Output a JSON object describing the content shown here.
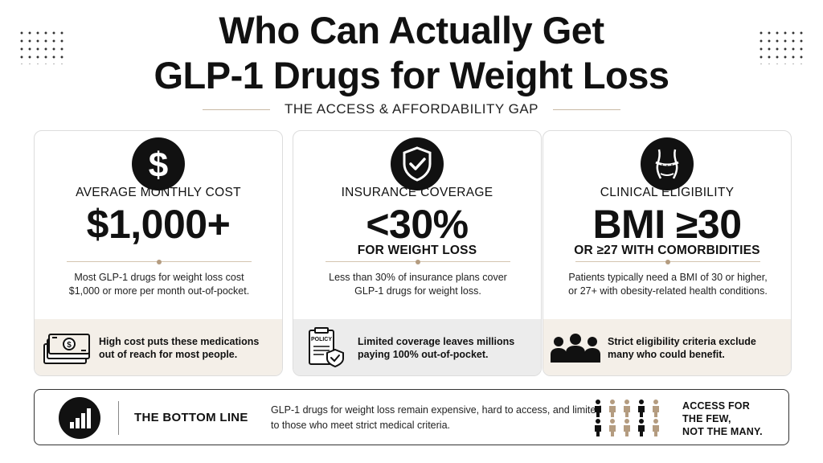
{
  "title": {
    "line1": "Who Can Actually Get",
    "line2": "GLP-1 Drugs for Weight Loss"
  },
  "subtitle": "THE ACCESS & AFFORDABILITY GAP",
  "cards": [
    {
      "icon": "dollar-icon",
      "label": "AVERAGE MONTHLY COST",
      "big": "$1,000+",
      "sub": "",
      "desc": "Most GLP-1 drugs for weight loss cost $1,000 or more per month out-of-pocket.",
      "foot_icon": "cash-stack-icon",
      "foot_text": "High cost puts these medications out of reach for most people."
    },
    {
      "icon": "shield-check-icon",
      "label": "INSURANCE COVERAGE",
      "big": "<30%",
      "sub": "FOR WEIGHT LOSS",
      "desc": "Less than 30% of insurance plans cover GLP-1 drugs for weight loss.",
      "foot_icon": "policy-document-icon",
      "policy_label": "POLICY",
      "foot_text": "Limited coverage leaves millions paying 100% out-of-pocket."
    },
    {
      "icon": "waist-measure-icon",
      "label": "CLINICAL ELIGIBILITY",
      "big": "BMI ≥30",
      "sub": "OR ≥27 WITH COMORBIDITIES",
      "desc": "Patients typically need a BMI of 30 or higher, or 27+ with obesity-related health conditions.",
      "foot_icon": "group-people-icon",
      "foot_text": "Strict eligibility criteria exclude many who could benefit."
    }
  ],
  "bottom": {
    "icon": "bar-chart-icon",
    "title": "THE BOTTOM LINE",
    "text": "GLP-1 drugs for weight loss remain expensive, hard to access, and limited to those who meet strict medical criteria.",
    "tag_line1": "ACCESS FOR",
    "tag_line2": "THE FEW,",
    "tag_line3": "NOT THE MANY."
  },
  "colors": {
    "accent_beige": "#f4efe8",
    "accent_gray": "#ececec",
    "tan": "#b49c80",
    "dark": "#111111"
  }
}
